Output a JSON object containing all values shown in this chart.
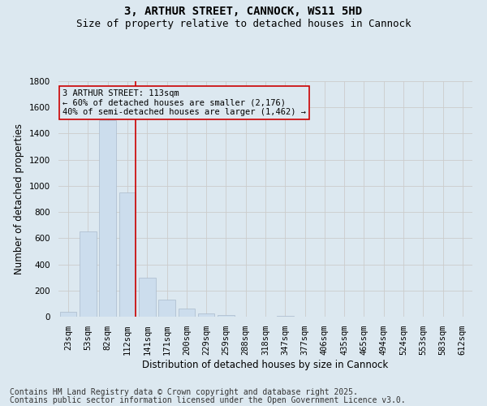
{
  "title_line1": "3, ARTHUR STREET, CANNOCK, WS11 5HD",
  "title_line2": "Size of property relative to detached houses in Cannock",
  "xlabel": "Distribution of detached houses by size in Cannock",
  "ylabel": "Number of detached properties",
  "categories": [
    "23sqm",
    "53sqm",
    "82sqm",
    "112sqm",
    "141sqm",
    "171sqm",
    "200sqm",
    "229sqm",
    "259sqm",
    "288sqm",
    "318sqm",
    "347sqm",
    "377sqm",
    "406sqm",
    "435sqm",
    "465sqm",
    "494sqm",
    "524sqm",
    "553sqm",
    "583sqm",
    "612sqm"
  ],
  "values": [
    40,
    650,
    1500,
    950,
    295,
    130,
    60,
    25,
    10,
    0,
    0,
    5,
    0,
    0,
    0,
    0,
    0,
    0,
    0,
    0,
    0
  ],
  "bar_color": "#ccdded",
  "bar_edge_color": "#aabbcc",
  "grid_color": "#cccccc",
  "background_color": "#dce8f0",
  "plot_bg_color": "#dce8f0",
  "vline_color": "#cc0000",
  "vline_bar_index": 3,
  "annotation_line1": "3 ARTHUR STREET: 113sqm",
  "annotation_line2": "← 60% of detached houses are smaller (2,176)",
  "annotation_line3": "40% of semi-detached houses are larger (1,462) →",
  "annotation_box_color": "#cc0000",
  "ylim": [
    0,
    1800
  ],
  "yticks": [
    0,
    200,
    400,
    600,
    800,
    1000,
    1200,
    1400,
    1600,
    1800
  ],
  "footnote1": "Contains HM Land Registry data © Crown copyright and database right 2025.",
  "footnote2": "Contains public sector information licensed under the Open Government Licence v3.0.",
  "title_fontsize": 10,
  "subtitle_fontsize": 9,
  "axis_label_fontsize": 8.5,
  "tick_fontsize": 7.5,
  "annotation_fontsize": 7.5,
  "footnote_fontsize": 7
}
